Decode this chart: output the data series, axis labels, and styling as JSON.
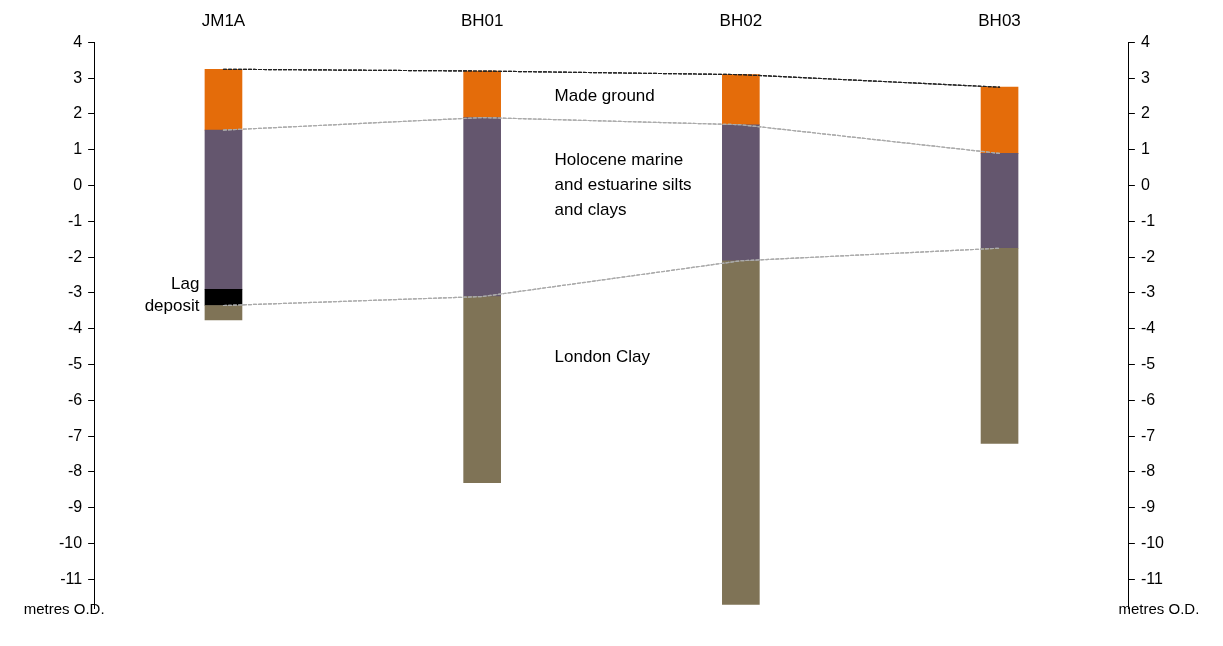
{
  "chart_data": {
    "type": "bar",
    "categories": [
      "JM1A",
      "BH01",
      "BH02",
      "BH03"
    ],
    "series": [
      {
        "type": "line",
        "color": "#222222",
        "line_style": "dashed",
        "marker": "none",
        "values": [
          3.25,
          3.2,
          3.1,
          2.75
        ]
      },
      {
        "type": "line",
        "color": "#aaaaaa",
        "line_style": "dashed",
        "marker": "none",
        "values": [
          1.55,
          1.9,
          1.7,
          0.9
        ]
      },
      {
        "type": "line",
        "color": "#aaaaaa",
        "line_style": "dashed",
        "marker": "none",
        "values": [
          -3.35,
          -3.1,
          -2.1,
          -1.75
        ]
      },
      {
        "color": "#7f7356",
        "base": [
          -3.75,
          -8.3,
          -11.7,
          -7.2
        ],
        "values": [
          0.4,
          5.2,
          9.6,
          5.45
        ]
      },
      {
        "color": "#000000",
        "base": [
          -3.35,
          null,
          null,
          null
        ],
        "values": [
          0.45,
          null,
          null,
          null
        ]
      },
      {
        "color": "#64566e",
        "base": [
          -2.9,
          -3.1,
          -2.1,
          -1.75
        ],
        "values": [
          4.45,
          5.0,
          3.8,
          2.65
        ]
      },
      {
        "color": "#e46c0a",
        "base": [
          1.55,
          1.9,
          1.7,
          0.9
        ],
        "values": [
          1.7,
          1.3,
          1.4,
          1.85
        ]
      }
    ],
    "annotations": [
      "Made ground",
      "Holocene marine and estuarine silts and clays",
      "London Clay",
      "Lag deposit"
    ],
    "ylim": [
      -11.8,
      4
    ],
    "yticks": [
      -11,
      -10,
      -9,
      -8,
      -7,
      -6,
      -5,
      -4,
      -3,
      -2,
      -1,
      0,
      1,
      2,
      3,
      4
    ],
    "y2lim": [
      -11.8,
      4
    ],
    "y2ticks": [
      -11,
      -10,
      -9,
      -8,
      -7,
      -6,
      -5,
      -4,
      -3,
      -2,
      -1,
      0,
      1,
      2,
      3,
      4
    ],
    "ylabel": "metres O.D.",
    "y2label": "metres O.D."
  }
}
